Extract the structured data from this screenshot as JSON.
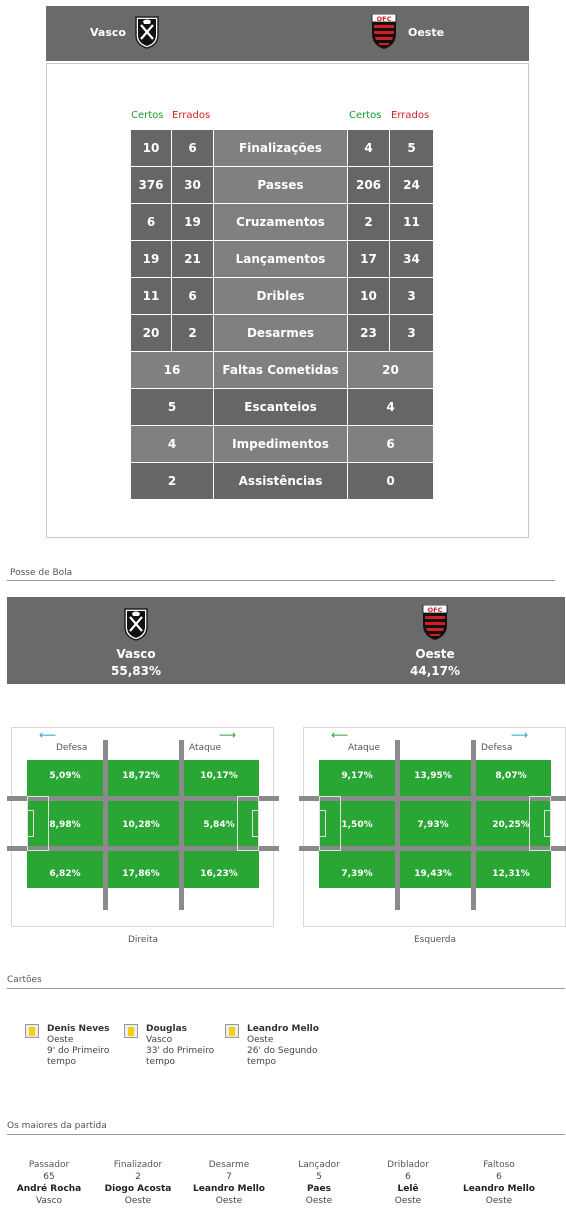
{
  "match": {
    "home": "Vasco",
    "away": "Oeste",
    "away_crest_text": "OFC"
  },
  "legend": {
    "correct": "Certos",
    "wrong": "Errados"
  },
  "stats_split": [
    {
      "label": "Finalizações",
      "home_ok": "10",
      "home_err": "6",
      "away_ok": "4",
      "away_err": "5"
    },
    {
      "label": "Passes",
      "home_ok": "376",
      "home_err": "30",
      "away_ok": "206",
      "away_err": "24"
    },
    {
      "label": "Cruzamentos",
      "home_ok": "6",
      "home_err": "19",
      "away_ok": "2",
      "away_err": "11"
    },
    {
      "label": "Lançamentos",
      "home_ok": "19",
      "home_err": "21",
      "away_ok": "17",
      "away_err": "34"
    },
    {
      "label": "Dribles",
      "home_ok": "11",
      "home_err": "6",
      "away_ok": "10",
      "away_err": "3"
    },
    {
      "label": "Desarmes",
      "home_ok": "20",
      "home_err": "2",
      "away_ok": "23",
      "away_err": "3"
    }
  ],
  "stats_single": [
    {
      "label": "Faltas Cometidas",
      "home": "16",
      "away": "20"
    },
    {
      "label": "Escanteios",
      "home": "5",
      "away": "4"
    },
    {
      "label": "Impedimentos",
      "home": "4",
      "away": "6"
    },
    {
      "label": "Assistências",
      "home": "2",
      "away": "0"
    }
  ],
  "possession": {
    "title": "Posse de Bola",
    "home_pct": "55,83%",
    "away_pct": "44,17%"
  },
  "fields": {
    "defense": "Defesa",
    "attack": "Ataque",
    "left_field": {
      "caption": "Direita",
      "zones": [
        "5,09%",
        "18,72%",
        "10,17%",
        "8,98%",
        "10,28%",
        "5,84%",
        "6,82%",
        "17,86%",
        "16,23%"
      ]
    },
    "right_field": {
      "caption": "Esquerda",
      "zones": [
        "9,17%",
        "13,95%",
        "8,07%",
        "1,50%",
        "7,93%",
        "20,25%",
        "7,39%",
        "19,43%",
        "12,31%"
      ]
    }
  },
  "cards": {
    "title": "Cartões",
    "items": [
      {
        "player": "Denis Neves",
        "team": "Oeste",
        "time1": "9' do Primeiro",
        "time2": "tempo",
        "color": "#f1d10a"
      },
      {
        "player": "Douglas",
        "team": "Vasco",
        "time1": "33' do Primeiro",
        "time2": "tempo",
        "color": "#f1d10a"
      },
      {
        "player": "Leandro Mello",
        "team": "Oeste",
        "time1": "26' do Segundo",
        "time2": "tempo",
        "color": "#f1d10a"
      }
    ]
  },
  "leaders": {
    "title": "Os maiores da partida",
    "items": [
      {
        "role": "Passador",
        "value": "65",
        "player": "André Rocha",
        "team": "Vasco"
      },
      {
        "role": "Finalizador",
        "value": "2",
        "player": "Diogo Acosta",
        "team": "Oeste"
      },
      {
        "role": "Desarme",
        "value": "7",
        "player": "Leandro Mello",
        "team": "Oeste"
      },
      {
        "role": "Lançador",
        "value": "5",
        "player": "Paes",
        "team": "Oeste"
      },
      {
        "role": "Driblador",
        "value": "6",
        "player": "Lelê",
        "team": "Oeste"
      },
      {
        "role": "Faltoso",
        "value": "6",
        "player": "Leandro Mello",
        "team": "Oeste"
      }
    ]
  },
  "colors": {
    "header_bg": "#6a6a6a",
    "grass": "#2aa634",
    "correct": "#1a9a2a",
    "wrong": "#d21f1f"
  }
}
